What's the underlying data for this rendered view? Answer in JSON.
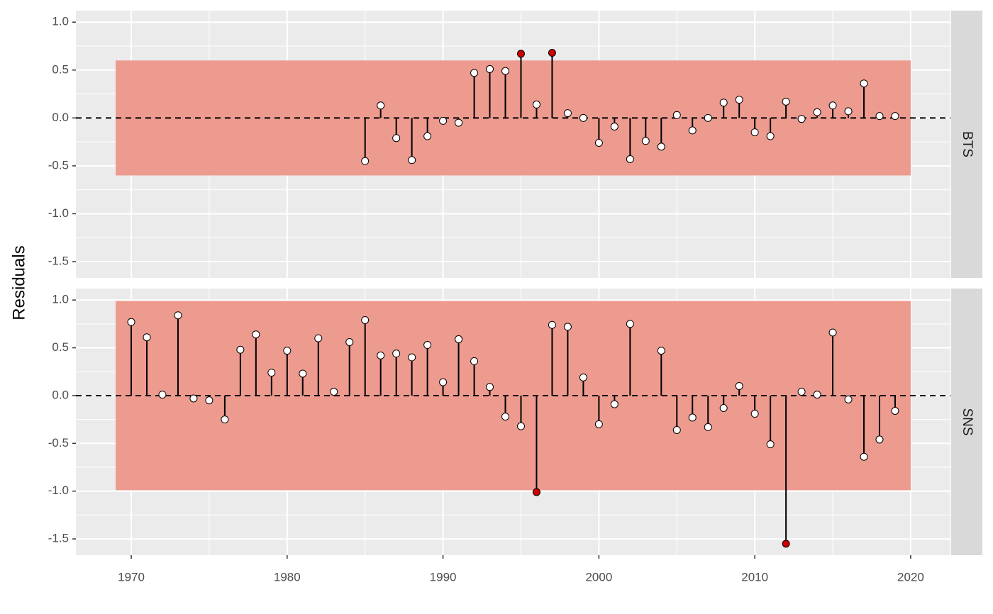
{
  "chart_data": [
    {
      "type": "lollipop",
      "strip": "BTS",
      "y_label": "Residuals",
      "x": [
        1985,
        1986,
        1987,
        1988,
        1989,
        1990,
        1991,
        1992,
        1993,
        1994,
        1995,
        1996,
        1997,
        1998,
        1999,
        2000,
        2001,
        2002,
        2003,
        2004,
        2005,
        2006,
        2007,
        2008,
        2009,
        2010,
        2011,
        2012,
        2013,
        2014,
        2015,
        2016,
        2017,
        2018,
        2019
      ],
      "values": [
        -0.45,
        0.13,
        -0.21,
        -0.44,
        -0.19,
        -0.03,
        -0.05,
        0.47,
        0.51,
        0.49,
        0.67,
        0.14,
        0.68,
        0.05,
        0.0,
        -0.26,
        -0.09,
        -0.43,
        -0.24,
        -0.3,
        0.03,
        -0.13,
        0.0,
        0.16,
        0.19,
        -0.15,
        -0.19,
        0.17,
        -0.01,
        0.06,
        0.13,
        0.07,
        0.36,
        0.02,
        0.02
      ],
      "band": [
        -0.6,
        0.6
      ],
      "band_x": [
        1969,
        2020
      ],
      "band_color": "#ed9a8f",
      "point_color": "#ffffff",
      "outlier_color": "#cc0000",
      "xlim": [
        1966.45,
        2022.55
      ],
      "xticks": [
        1970,
        1980,
        1990,
        2000,
        2010,
        2020
      ],
      "ylim": [
        -1.67,
        1.12
      ],
      "yticks": [
        {
          "value": 1.0,
          "label": "1.0"
        },
        {
          "value": 0.5,
          "label": "0.5"
        },
        {
          "value": 0.0,
          "label": "0.0"
        },
        {
          "value": -0.5,
          "label": "-0.5"
        },
        {
          "value": -1.0,
          "label": "-1.0"
        },
        {
          "value": -1.5,
          "label": "-1.5"
        }
      ]
    },
    {
      "type": "lollipop",
      "strip": "SNS",
      "x": [
        1970,
        1971,
        1972,
        1973,
        1974,
        1975,
        1976,
        1977,
        1978,
        1979,
        1980,
        1981,
        1982,
        1983,
        1984,
        1985,
        1986,
        1987,
        1988,
        1989,
        1990,
        1991,
        1992,
        1993,
        1994,
        1995,
        1996,
        1997,
        1998,
        1999,
        2000,
        2001,
        2002,
        2004,
        2005,
        2006,
        2007,
        2008,
        2009,
        2010,
        2011,
        2012,
        2013,
        2014,
        2015,
        2016,
        2017,
        2018,
        2019
      ],
      "values": [
        0.77,
        0.61,
        0.01,
        0.84,
        -0.03,
        -0.05,
        -0.25,
        0.48,
        0.64,
        0.24,
        0.47,
        0.23,
        0.6,
        0.04,
        0.56,
        0.79,
        0.42,
        0.44,
        0.4,
        0.53,
        0.14,
        0.59,
        0.36,
        0.09,
        -0.22,
        -0.32,
        -1.01,
        0.74,
        0.72,
        0.19,
        -0.3,
        -0.09,
        0.75,
        0.47,
        -0.36,
        -0.23,
        -0.33,
        -0.13,
        0.1,
        -0.19,
        -0.51,
        -1.55,
        0.04,
        0.01,
        0.66,
        -0.04,
        -0.64,
        -0.46,
        -0.16
      ],
      "band": [
        -0.99,
        0.99
      ],
      "band_x": [
        1969,
        2020
      ],
      "band_color": "#ed9a8f",
      "point_color": "#ffffff",
      "outlier_color": "#cc0000",
      "xlim": [
        1966.45,
        2022.55
      ],
      "xticks": [
        1970,
        1980,
        1990,
        2000,
        2010,
        2020
      ],
      "ylim": [
        -1.67,
        1.12
      ],
      "yticks": [
        {
          "value": 1.0,
          "label": "1.0"
        },
        {
          "value": 0.5,
          "label": "0.5"
        },
        {
          "value": 0.0,
          "label": "0.0"
        },
        {
          "value": -0.5,
          "label": "-0.5"
        },
        {
          "value": -1.0,
          "label": "-1.0"
        },
        {
          "value": -1.5,
          "label": "-1.5"
        }
      ]
    }
  ]
}
